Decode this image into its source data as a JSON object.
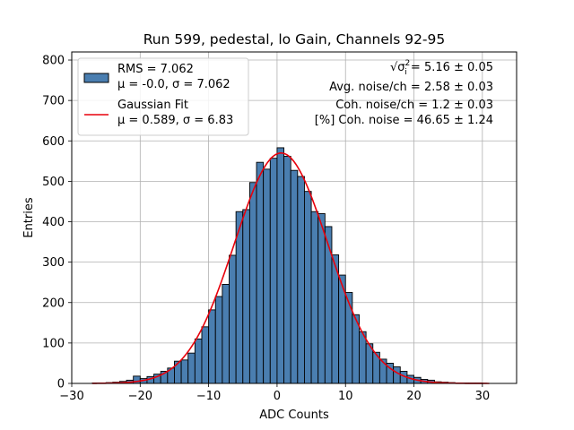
{
  "chart_data": {
    "type": "bar",
    "title": "Run 599, pedestal, lo Gain, Channels 92-95",
    "xlabel": "ADC Counts",
    "ylabel": "Entries",
    "xlim": [
      -30,
      35
    ],
    "ylim": [
      0,
      820
    ],
    "grid": true,
    "xticks": [
      -30,
      -20,
      -10,
      0,
      10,
      20,
      30
    ],
    "yticks": [
      0,
      100,
      200,
      300,
      400,
      500,
      600,
      700,
      800
    ],
    "bin_width": 1,
    "bin_left_edges": [
      -27,
      -26,
      -25,
      -24,
      -23,
      -22,
      -21,
      -20,
      -19,
      -18,
      -17,
      -16,
      -15,
      -14,
      -13,
      -12,
      -11,
      -10,
      -9,
      -8,
      -7,
      -6,
      -5,
      -4,
      -3,
      -2,
      -1,
      0,
      1,
      2,
      3,
      4,
      5,
      6,
      7,
      8,
      9,
      10,
      11,
      12,
      13,
      14,
      15,
      16,
      17,
      18,
      19,
      20,
      21,
      22,
      23,
      24,
      25,
      26,
      27,
      28,
      29,
      30,
      31
    ],
    "series": [
      {
        "name": "RMS = 7.062",
        "name_line2": "μ = -0.0, σ = 7.062",
        "color": "#4a7eb0",
        "edgecolor": "#000000",
        "values": [
          1,
          1,
          2,
          3,
          5,
          8,
          18,
          12,
          17,
          23,
          30,
          38,
          55,
          58,
          75,
          110,
          140,
          182,
          215,
          245,
          317,
          425,
          430,
          497,
          547,
          530,
          557,
          583,
          562,
          527,
          512,
          475,
          425,
          420,
          388,
          318,
          268,
          225,
          170,
          128,
          98,
          77,
          60,
          50,
          41,
          30,
          20,
          15,
          10,
          8,
          4,
          3,
          2,
          1,
          1,
          1,
          1,
          0,
          0
        ]
      },
      {
        "name": "Gaussian Fit",
        "name_line2": "μ = 0.589, σ = 6.83",
        "color": "#e8000b",
        "type": "line",
        "mu": 0.589,
        "sigma": 6.83,
        "amplitude": 570,
        "x_range": [
          -27,
          31
        ]
      }
    ],
    "legend_position": "upper left",
    "annotations": [
      {
        "prefix": "√σ",
        "sup": "2",
        "sub": "i",
        "text": " = 5.16 ± 0.05"
      },
      {
        "text": "Avg. noise/ch = 2.58 ± 0.03"
      },
      {
        "text": "Coh. noise/ch = 1.2 ± 0.03"
      },
      {
        "text": "[%] Coh. noise = 46.65 ± 1.24"
      }
    ]
  }
}
